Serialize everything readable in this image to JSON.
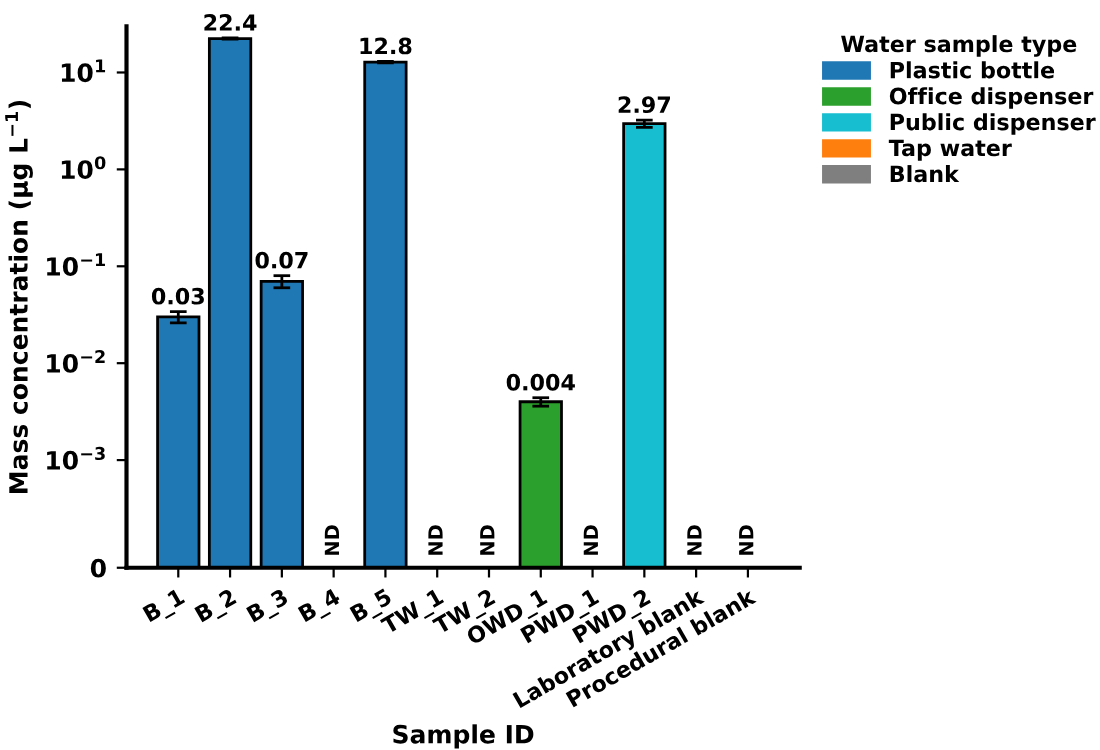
{
  "chart_data": {
    "type": "bar",
    "xlabel": "Sample ID",
    "ylabel": "Mass concentration (μg L$^{−1}$)",
    "legend_title": "Water sample type",
    "categories": [
      "B_1",
      "B_2",
      "B_3",
      "B_4",
      "B_5",
      "TW_1",
      "TW_2",
      "OWD_1",
      "PWD_1",
      "PWD_2",
      "Laboratory blank",
      "Procedural blank"
    ],
    "series": [
      {
        "name": "Plastic bottle",
        "color": "#1f77b4",
        "values": [
          0.03,
          22.4,
          0.07,
          null,
          12.8,
          null,
          null,
          null,
          null,
          null,
          null,
          null
        ],
        "errors": [
          0.004,
          0.3,
          0.01,
          null,
          0.2,
          null,
          null,
          null,
          null,
          null,
          null,
          null
        ],
        "value_labels": [
          "0.03",
          "22.4",
          "0.07",
          "ND",
          "12.8",
          null,
          null,
          null,
          null,
          null,
          null,
          null
        ]
      },
      {
        "name": "Office dispenser",
        "color": "#2ca02c",
        "values": [
          null,
          null,
          null,
          null,
          null,
          null,
          null,
          0.004,
          null,
          null,
          null,
          null
        ],
        "errors": [
          null,
          null,
          null,
          null,
          null,
          null,
          null,
          0.0004,
          null,
          null,
          null,
          null
        ],
        "value_labels": [
          null,
          null,
          null,
          null,
          null,
          null,
          null,
          "0.004",
          null,
          null,
          null,
          null
        ]
      },
      {
        "name": "Public dispenser",
        "color": "#17becf",
        "values": [
          null,
          null,
          null,
          null,
          null,
          null,
          null,
          null,
          null,
          2.97,
          null,
          null
        ],
        "errors": [
          null,
          null,
          null,
          null,
          null,
          null,
          null,
          null,
          null,
          0.25,
          null,
          null
        ],
        "value_labels": [
          null,
          null,
          null,
          null,
          null,
          null,
          null,
          null,
          "ND",
          "2.97",
          null,
          null
        ]
      },
      {
        "name": "Tap water",
        "color": "#ff7f0e",
        "values": [
          null,
          null,
          null,
          null,
          null,
          null,
          null,
          null,
          null,
          null,
          null,
          null
        ],
        "value_labels": [
          null,
          null,
          null,
          null,
          null,
          "ND",
          "ND",
          null,
          null,
          null,
          null,
          null
        ]
      },
      {
        "name": "Blank",
        "color": "#7f7f7f",
        "values": [
          null,
          null,
          null,
          null,
          null,
          null,
          null,
          null,
          null,
          null,
          null,
          null
        ],
        "value_labels": [
          null,
          null,
          null,
          null,
          null,
          null,
          null,
          null,
          null,
          null,
          "ND",
          "ND"
        ]
      }
    ],
    "log": "y",
    "ylim": [
      0,
      30
    ],
    "yticks": [
      0,
      {
        "value": 0.001,
        "label": "10$^{−3}$"
      },
      {
        "value": 0.01,
        "label": "10$^{−2}$"
      },
      {
        "value": 0.1,
        "label": "10$^{−1}$"
      },
      {
        "value": 1,
        "label": "10$^{0}$"
      },
      {
        "value": 10,
        "label": "10$^{1}$"
      }
    ],
    "legend": "top right",
    "grid": false
  }
}
